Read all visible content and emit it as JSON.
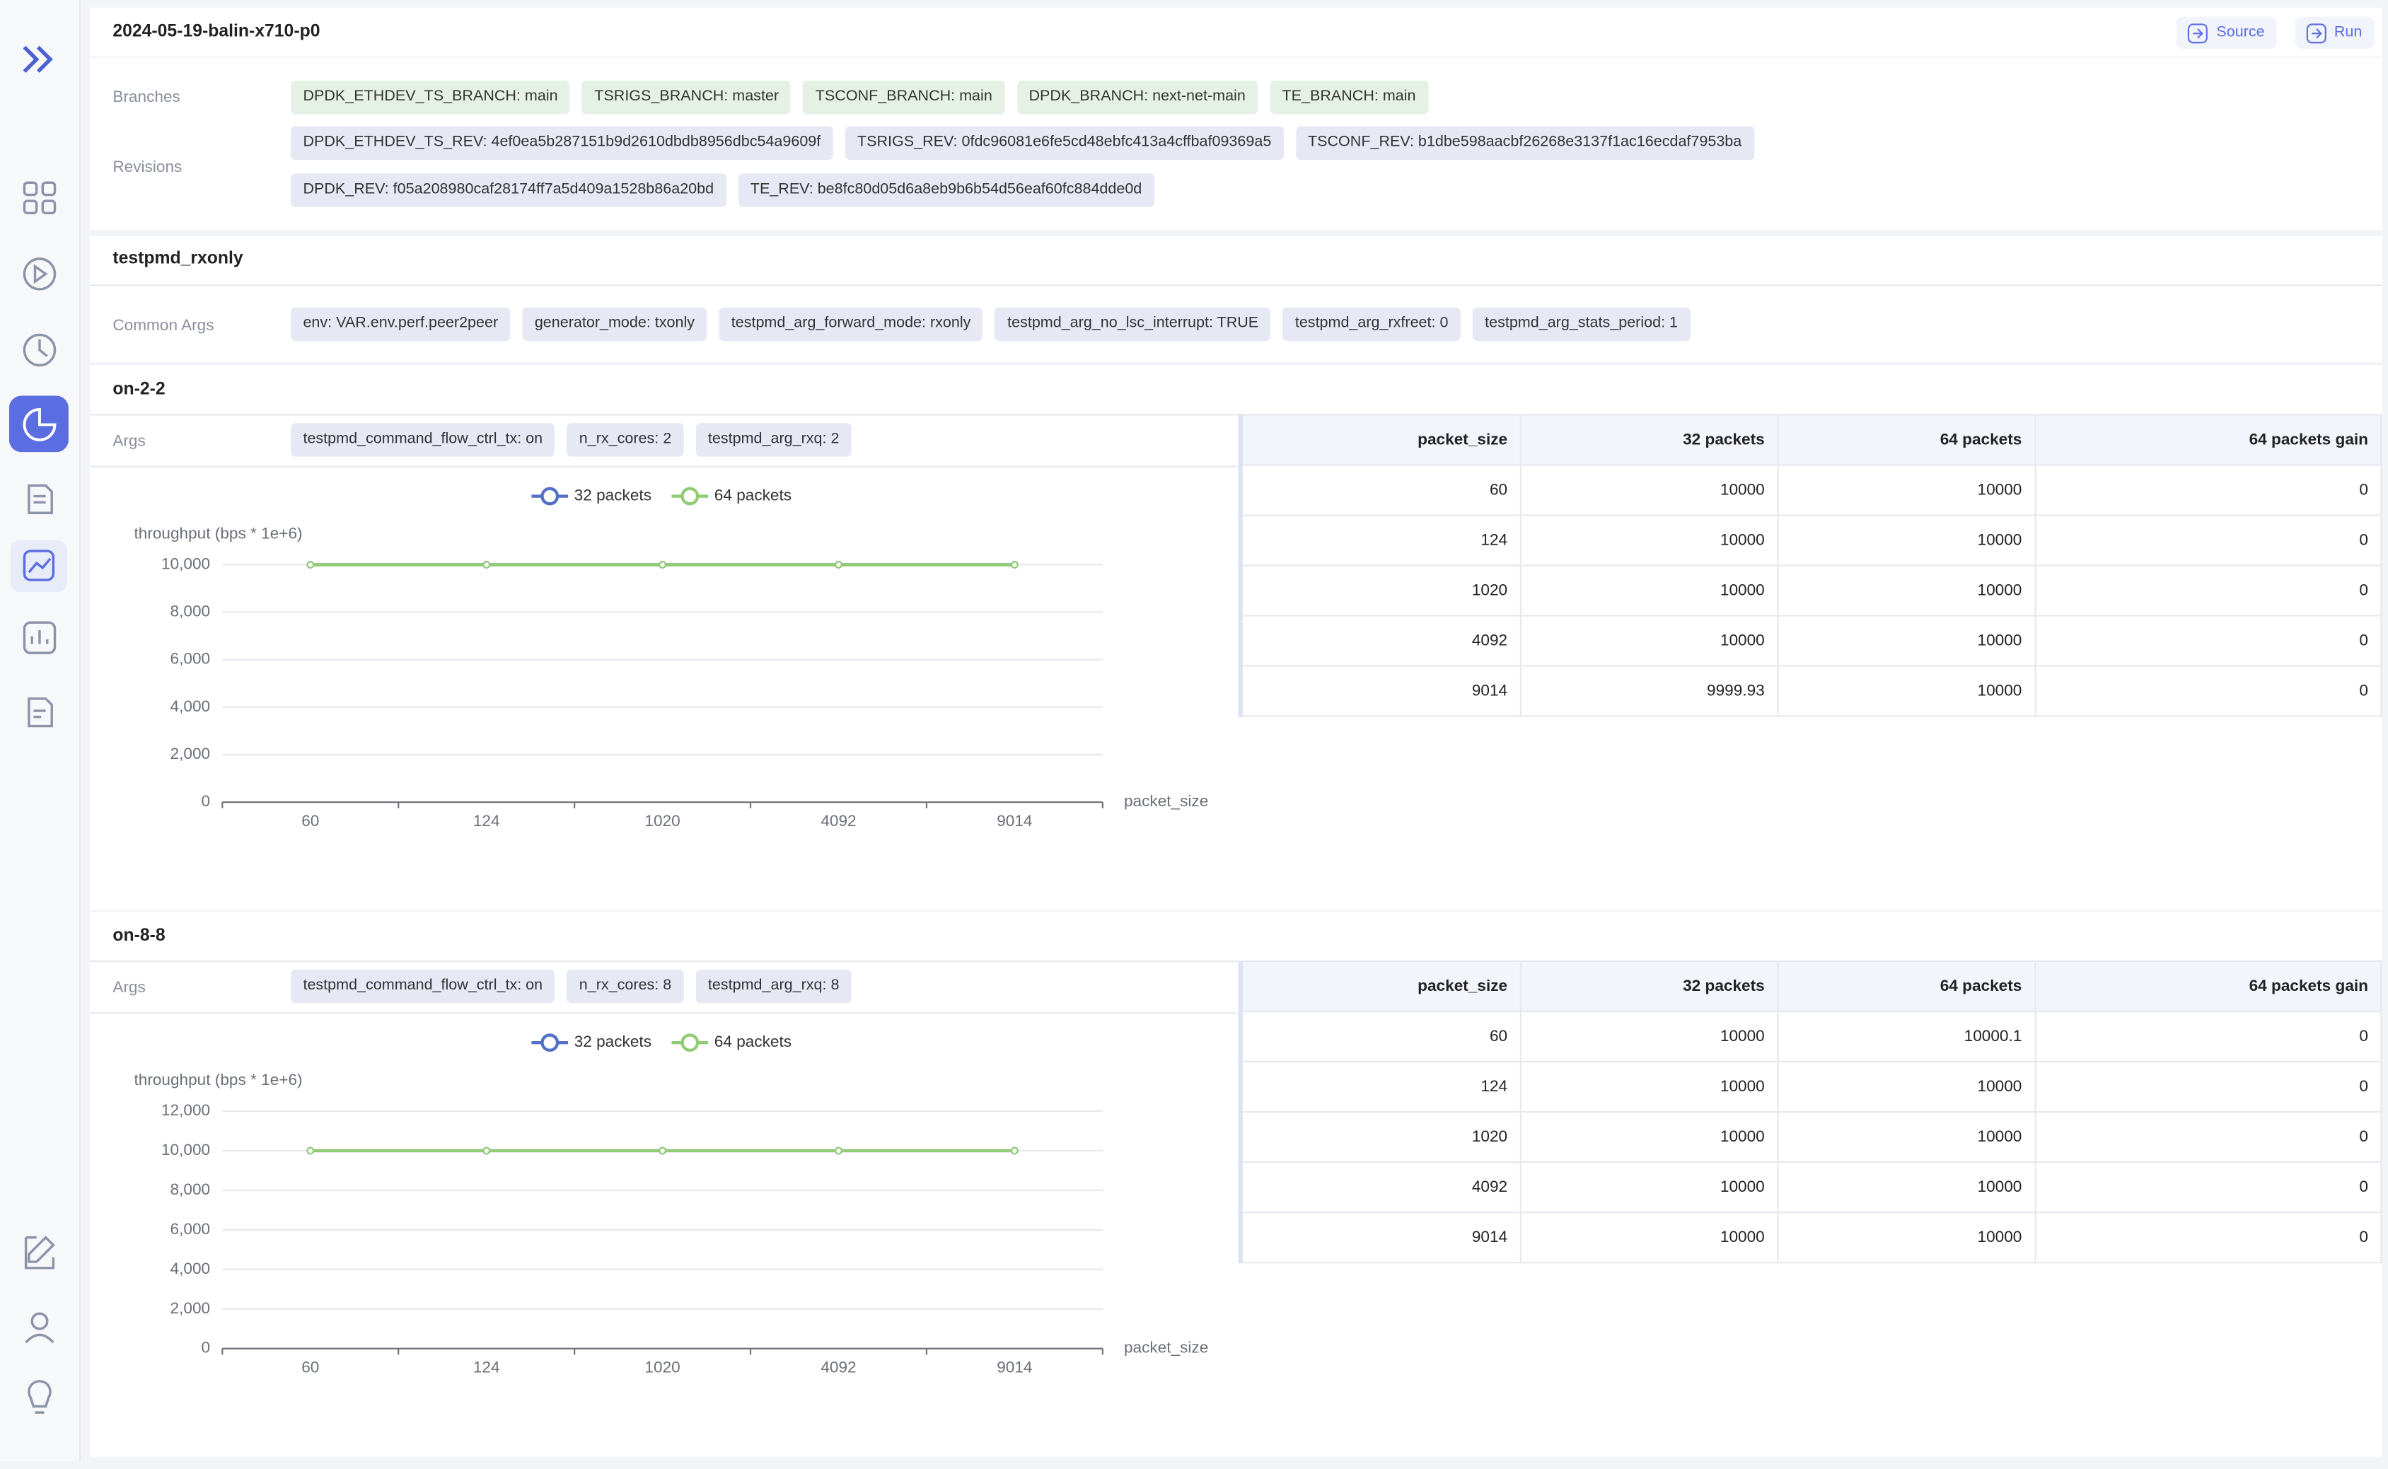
{
  "header": {
    "title": "2024-05-19-balin-x710-p0",
    "buttons": [
      "Source",
      "Run"
    ]
  },
  "meta": {
    "branches_label": "Branches",
    "branches": [
      "DPDK_ETHDEV_TS_BRANCH: main",
      "TSRIGS_BRANCH: master",
      "TSCONF_BRANCH: main",
      "DPDK_BRANCH: next-net-main",
      "TE_BRANCH: main"
    ],
    "revisions_label": "Revisions",
    "revisions": [
      "DPDK_ETHDEV_TS_REV: 4ef0ea5b287151b9d2610dbdb8956dbc54a9609f",
      "TSRIGS_REV: 0fdc96081e6fe5cd48ebfc413a4cffbaf09369a5",
      "TSCONF_REV: b1dbe598aacbf26268e3137f1ac16ecdaf7953ba",
      "DPDK_REV: f05a208980caf28174ff7a5d409a1528b86a20bd",
      "TE_REV: be8fc80d05d6a8eb9b6b54d56eaf60fc884dde0d"
    ]
  },
  "test": {
    "name": "testpmd_rxonly",
    "common_args_label": "Common Args",
    "common_args": [
      "env: VAR.env.perf.peer2peer",
      "generator_mode: txonly",
      "testpmd_arg_forward_mode: rxonly",
      "testpmd_arg_no_lsc_interrupt: TRUE",
      "testpmd_arg_rxfreet: 0",
      "testpmd_arg_stats_period: 1"
    ]
  },
  "sections": [
    {
      "title": "on-2-2",
      "args_label": "Args",
      "args": [
        "testpmd_command_flow_ctrl_tx: on",
        "n_rx_cores: 2",
        "testpmd_arg_rxq: 2"
      ],
      "chart": {
        "type": "line",
        "y_label": "throughput (bps * 1e+6)",
        "x_label": "packet_size",
        "categories": [
          "60",
          "124",
          "1020",
          "4092",
          "9014"
        ],
        "series": [
          {
            "name": "32 packets",
            "color": "#5470c6",
            "values": [
              10000,
              10000,
              10000,
              10000,
              9999.93
            ]
          },
          {
            "name": "64 packets",
            "color": "#91cc75",
            "values": [
              10000,
              10000,
              10000,
              10000,
              10000
            ]
          }
        ],
        "ylim": [
          0,
          10000
        ],
        "yticks": [
          0,
          {
            "value": 2000,
            "label": "2,000"
          },
          {
            "value": 4000,
            "label": "4,000"
          },
          {
            "value": 6000,
            "label": "6,000"
          },
          {
            "value": 8000,
            "label": "8,000"
          },
          {
            "value": 10000,
            "label": "10,000"
          }
        ],
        "grid": true
      },
      "table": {
        "columns": [
          "packet_size",
          "32 packets",
          "64 packets",
          "64 packets gain"
        ],
        "rows": [
          [
            60,
            10000,
            10000,
            0
          ],
          [
            124,
            10000,
            10000,
            0
          ],
          [
            1020,
            10000,
            10000,
            0
          ],
          [
            4092,
            10000,
            10000,
            0
          ],
          [
            9014,
            9999.93,
            10000,
            0
          ]
        ]
      }
    },
    {
      "title": "on-8-8",
      "args_label": "Args",
      "args": [
        "testpmd_command_flow_ctrl_tx: on",
        "n_rx_cores: 8",
        "testpmd_arg_rxq: 8"
      ],
      "chart": {
        "type": "line",
        "y_label": "throughput (bps * 1e+6)",
        "x_label": "packet_size",
        "categories": [
          "60",
          "124",
          "1020",
          "4092",
          "9014"
        ],
        "series": [
          {
            "name": "32 packets",
            "color": "#5470c6",
            "values": [
              10000,
              10000,
              10000,
              10000,
              10000
            ]
          },
          {
            "name": "64 packets",
            "color": "#91cc75",
            "values": [
              10000.1,
              10000,
              10000,
              10000,
              10000
            ]
          }
        ],
        "ylim": [
          0,
          12000
        ],
        "yticks": [
          0,
          {
            "value": 2000,
            "label": "2,000"
          },
          {
            "value": 4000,
            "label": "4,000"
          },
          {
            "value": 6000,
            "label": "6,000"
          },
          {
            "value": 8000,
            "label": "8,000"
          },
          {
            "value": 10000,
            "label": "10,000"
          },
          {
            "value": 12000,
            "label": "12,000"
          }
        ],
        "grid": true
      },
      "table": {
        "columns": [
          "packet_size",
          "32 packets",
          "64 packets",
          "64 packets gain"
        ],
        "rows": [
          [
            60,
            10000,
            10000.1,
            0
          ],
          [
            124,
            10000,
            10000,
            0
          ],
          [
            1020,
            10000,
            10000,
            0
          ],
          [
            4092,
            10000,
            10000,
            0
          ],
          [
            9014,
            10000,
            10000,
            0
          ]
        ]
      }
    }
  ]
}
